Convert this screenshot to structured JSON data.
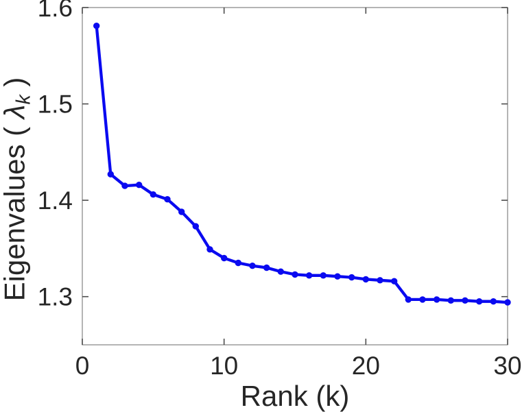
{
  "figure": {
    "background": "#ffffff",
    "xlabel_text": "Rank (k)",
    "ylabel_parts": {
      "pre": "Eigenvalues ( ",
      "lambda": "λ",
      "sub": "k",
      "post": " )"
    }
  },
  "chart_data": {
    "type": "line",
    "title": "",
    "xlabel": "Rank (k)",
    "ylabel": "Eigenvalues (λ_k)",
    "xlim": [
      0,
      30
    ],
    "ylim": [
      1.25,
      1.6
    ],
    "xticks": [
      0,
      10,
      20,
      30
    ],
    "yticks": [
      1.3,
      1.4,
      1.5,
      1.6
    ],
    "grid": false,
    "box": true,
    "tick_direction": "in",
    "legend": "none",
    "axis_color": "#8c8c8c",
    "tick_color": "#4d4d4d",
    "text_color": "#262626",
    "series": [
      {
        "name": "eigenvalues",
        "color": "#0a0af0",
        "marker": "filled-circle",
        "line_width": 4.3,
        "marker_radius": 4.7,
        "x": [
          1,
          2,
          3,
          4,
          5,
          6,
          7,
          8,
          9,
          10,
          11,
          12,
          13,
          14,
          15,
          16,
          17,
          18,
          19,
          20,
          21,
          22,
          23,
          24,
          25,
          26,
          27,
          28,
          29,
          30
        ],
        "values": [
          1.581,
          1.427,
          1.415,
          1.416,
          1.406,
          1.401,
          1.388,
          1.373,
          1.349,
          1.34,
          1.335,
          1.332,
          1.33,
          1.326,
          1.323,
          1.322,
          1.322,
          1.321,
          1.32,
          1.318,
          1.317,
          1.316,
          1.297,
          1.297,
          1.297,
          1.296,
          1.296,
          1.295,
          1.295,
          1.294
        ]
      }
    ]
  }
}
